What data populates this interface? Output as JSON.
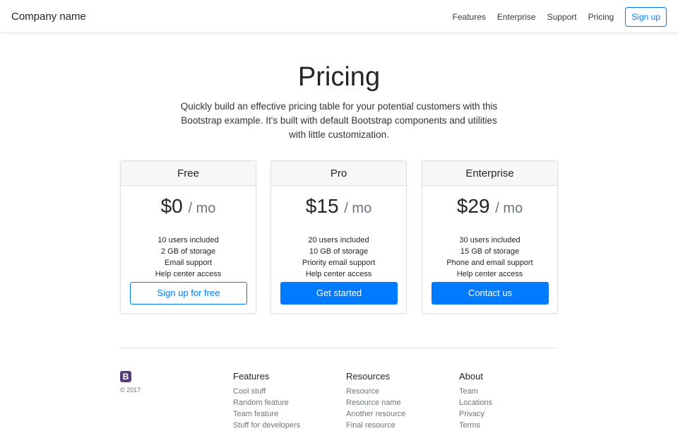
{
  "nav": {
    "brand": "Company name",
    "links": [
      "Features",
      "Enterprise",
      "Support",
      "Pricing"
    ],
    "signup": "Sign up"
  },
  "hero": {
    "title": "Pricing",
    "lead": "Quickly build an effective pricing table for your potential customers with this Bootstrap example. It's built with default Bootstrap components and utilities with little customization."
  },
  "plans": [
    {
      "name": "Free",
      "price": "$0",
      "period": "/ mo",
      "features": [
        "10 users included",
        "2 GB of storage",
        "Email support",
        "Help center access"
      ],
      "button": "Sign up for free"
    },
    {
      "name": "Pro",
      "price": "$15",
      "period": "/ mo",
      "features": [
        "20 users included",
        "10 GB of storage",
        "Priority email support",
        "Help center access"
      ],
      "button": "Get started"
    },
    {
      "name": "Enterprise",
      "price": "$29",
      "period": "/ mo",
      "features": [
        "30 users included",
        "15 GB of storage",
        "Phone and email support",
        "Help center access"
      ],
      "button": "Contact us"
    }
  ],
  "footer": {
    "logo": "B",
    "copyright": "© 2017",
    "columns": [
      {
        "title": "Features",
        "links": [
          "Cool stuff",
          "Random feature",
          "Team feature",
          "Stuff for developers"
        ]
      },
      {
        "title": "Resources",
        "links": [
          "Resource",
          "Resource name",
          "Another resource",
          "Final resource"
        ]
      },
      {
        "title": "About",
        "links": [
          "Team",
          "Locations",
          "Privacy",
          "Terms"
        ]
      }
    ]
  },
  "colors": {
    "primary": "#007bff",
    "logo": "#563d7c"
  }
}
